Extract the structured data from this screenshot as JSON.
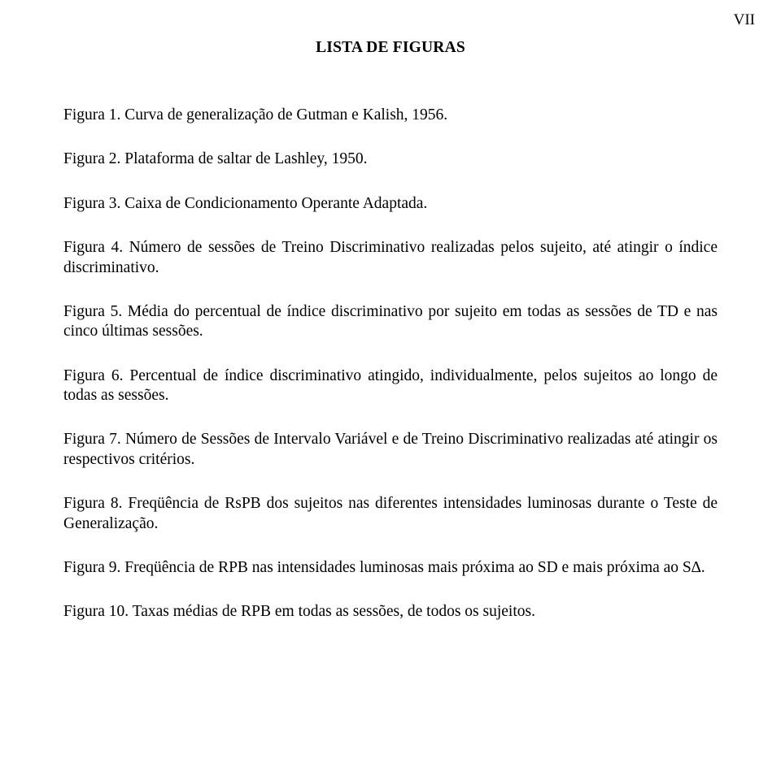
{
  "page_number": "VII",
  "title": "LISTA DE FIGURAS",
  "entries": [
    "Figura 1. Curva de generalização de Gutman e Kalish, 1956.",
    "Figura 2. Plataforma de saltar de Lashley, 1950.",
    "Figura 3. Caixa de Condicionamento Operante Adaptada.",
    "Figura 4. Número de sessões de Treino Discriminativo realizadas pelos sujeito, até atingir o índice discriminativo.",
    "Figura 5. Média do percentual de índice discriminativo por sujeito em todas as sessões de TD e nas cinco últimas sessões.",
    "Figura 6. Percentual de índice discriminativo atingido, individualmente, pelos sujeitos ao longo de todas as sessões.",
    "Figura 7. Número de Sessões de Intervalo Variável e de Treino Discriminativo realizadas até atingir os respectivos critérios.",
    "Figura 8. Freqüência de RsPB dos sujeitos nas diferentes intensidades luminosas durante o Teste de Generalização.",
    "Figura 9. Freqüência de RPB nas intensidades luminosas mais próxima ao SD e mais próxima ao S∆.",
    "Figura 10. Taxas médias de RPB em todas as sessões, de todos os sujeitos."
  ]
}
